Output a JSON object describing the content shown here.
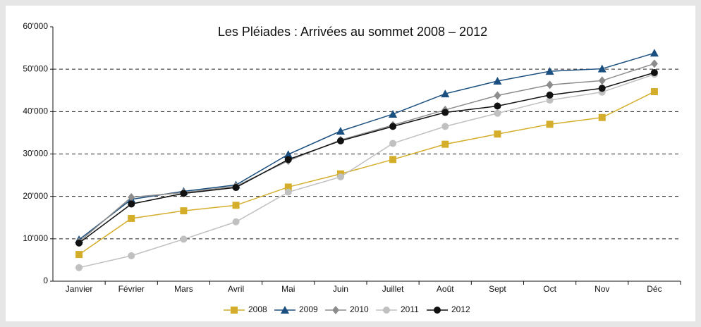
{
  "chart_data": {
    "type": "line",
    "title": "Les Pléiades : Arrivées au sommet 2008 – 2012",
    "categories": [
      "Janvier",
      "Février",
      "Mars",
      "Avril",
      "Mai",
      "Juin",
      "Juillet",
      "Août",
      "Sept",
      "Oct",
      "Nov",
      "Déc"
    ],
    "series": [
      {
        "name": "2008",
        "color": "#d4ae2b",
        "marker": "square",
        "values": [
          6300,
          14800,
          16600,
          17900,
          22200,
          25300,
          28700,
          32300,
          34700,
          37000,
          38600,
          44700
        ]
      },
      {
        "name": "2009",
        "color": "#1b4f7f",
        "marker": "triangle",
        "values": [
          9800,
          19300,
          21200,
          22700,
          29900,
          35400,
          39400,
          44200,
          47200,
          49500,
          50100,
          53800
        ]
      },
      {
        "name": "2010",
        "color": "#8c8c8c",
        "marker": "diamond",
        "values": [
          9300,
          19800,
          20900,
          22400,
          28400,
          33300,
          36800,
          40400,
          43800,
          46300,
          47300,
          51300
        ]
      },
      {
        "name": "2011",
        "color": "#c0c0c0",
        "marker": "circle",
        "values": [
          3200,
          6000,
          9900,
          14000,
          21000,
          24600,
          32500,
          36500,
          39600,
          42700,
          44600,
          48800
        ]
      },
      {
        "name": "2012",
        "color": "#111111",
        "marker": "circle",
        "values": [
          9000,
          18200,
          20700,
          22100,
          28700,
          33100,
          36500,
          39800,
          41300,
          43900,
          45500,
          49200
        ]
      }
    ],
    "ylim": [
      0,
      60000
    ],
    "yticks": [
      0,
      {
        "value": 10000,
        "label": "10'000"
      },
      {
        "value": 20000,
        "label": "20'000"
      },
      {
        "value": 30000,
        "label": "30'000"
      },
      {
        "value": 40000,
        "label": "40'000"
      },
      {
        "value": 50000,
        "label": "50'000"
      },
      {
        "value": 60000,
        "label": "60'000"
      }
    ],
    "grid": true,
    "legend": "bottom"
  }
}
